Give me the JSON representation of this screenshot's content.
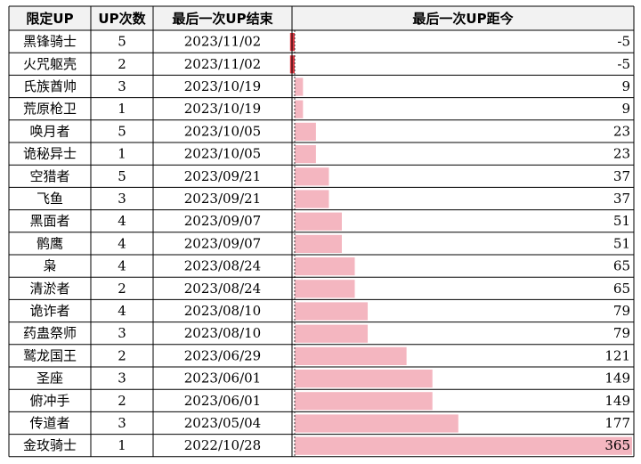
{
  "table": {
    "header": [
      "限定UP",
      "UP次数",
      "最后一次UP结束",
      "最后一次UP距今"
    ],
    "rows": [
      [
        "黑锋骑士",
        5,
        "2023/11/02",
        -5
      ],
      [
        "火咒躯壳",
        2,
        "2023/11/02",
        -5
      ],
      [
        "氏族酋帅",
        3,
        "2023/10/19",
        9
      ],
      [
        "荒原枪卫",
        1,
        "2023/10/19",
        9
      ],
      [
        "唤月者",
        5,
        "2023/10/05",
        23
      ],
      [
        "诡秘异士",
        1,
        "2023/10/05",
        23
      ],
      [
        "空猎者",
        5,
        "2023/09/21",
        37
      ],
      [
        "飞鱼",
        3,
        "2023/09/21",
        37
      ],
      [
        "黑面者",
        4,
        "2023/09/07",
        51
      ],
      [
        "鹘鹰",
        4,
        "2023/09/07",
        51
      ],
      [
        "枭",
        4,
        "2023/08/24",
        65
      ],
      [
        "清淤者",
        2,
        "2023/08/24",
        65
      ],
      [
        "诡诈者",
        4,
        "2023/08/10",
        79
      ],
      [
        "药蛊祭师",
        3,
        "2023/08/10",
        79
      ],
      [
        "鹫龙国王",
        2,
        "2023/06/29",
        121
      ],
      [
        "圣座",
        3,
        "2023/06/01",
        149
      ],
      [
        "俯冲手",
        2,
        "2023/06/01",
        149
      ],
      [
        "传道者",
        3,
        "2023/05/04",
        177
      ],
      [
        "金玫骑士",
        1,
        "2022/10/28",
        365
      ]
    ]
  }
}
